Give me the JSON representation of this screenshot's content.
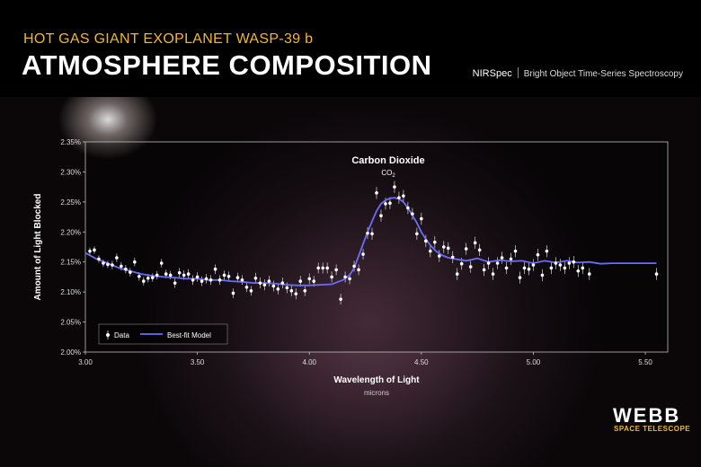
{
  "header": {
    "subtitle": "HOT GAS GIANT EXOPLANET WASP-39 b",
    "title": "ATMOSPHERE COMPOSITION",
    "instrument": "NIRSpec",
    "mode": "Bright Object Time-Series Spectroscopy"
  },
  "branding": {
    "name": "WEBB",
    "tagline": "SPACE TELESCOPE"
  },
  "colors": {
    "accent": "#f2b632",
    "model_line": "#6b6bff",
    "data_point": "#ffffff"
  },
  "chart_data": {
    "type": "scatter",
    "xlabel": "Wavelength of Light",
    "xunit": "microns",
    "ylabel": "Amount of Light Blocked",
    "xlim": [
      3.0,
      5.6
    ],
    "ylim": [
      2.0,
      2.35
    ],
    "x_ticks": [
      "3.00",
      "3.50",
      "4.00",
      "4.50",
      "5.00",
      "5.50"
    ],
    "y_ticks": [
      "2.00%",
      "2.05%",
      "2.10%",
      "2.15%",
      "2.20%",
      "2.25%",
      "2.30%",
      "2.35%"
    ],
    "legend": {
      "position": "bottom-left",
      "data_label": "Data",
      "model_label": "Best-fit Model"
    },
    "annotation": {
      "label": "Carbon Dioxide",
      "formula": "CO",
      "subscript": "2",
      "x": 4.35,
      "y": 2.29
    },
    "series": [
      {
        "name": "Data",
        "points": [
          [
            3.02,
            2.168,
            0.006
          ],
          [
            3.04,
            2.17,
            0.006
          ],
          [
            3.06,
            2.155,
            0.006
          ],
          [
            3.08,
            2.148,
            0.006
          ],
          [
            3.1,
            2.146,
            0.006
          ],
          [
            3.12,
            2.145,
            0.007
          ],
          [
            3.14,
            2.157,
            0.007
          ],
          [
            3.16,
            2.143,
            0.007
          ],
          [
            3.18,
            2.138,
            0.007
          ],
          [
            3.2,
            2.133,
            0.007
          ],
          [
            3.22,
            2.15,
            0.007
          ],
          [
            3.24,
            2.126,
            0.007
          ],
          [
            3.26,
            2.118,
            0.007
          ],
          [
            3.28,
            2.123,
            0.007
          ],
          [
            3.3,
            2.124,
            0.007
          ],
          [
            3.32,
            2.128,
            0.007
          ],
          [
            3.34,
            2.148,
            0.007
          ],
          [
            3.36,
            2.13,
            0.007
          ],
          [
            3.38,
            2.128,
            0.007
          ],
          [
            3.4,
            2.115,
            0.008
          ],
          [
            3.42,
            2.132,
            0.008
          ],
          [
            3.44,
            2.128,
            0.008
          ],
          [
            3.46,
            2.13,
            0.008
          ],
          [
            3.48,
            2.12,
            0.008
          ],
          [
            3.5,
            2.125,
            0.008
          ],
          [
            3.52,
            2.118,
            0.008
          ],
          [
            3.54,
            2.122,
            0.008
          ],
          [
            3.56,
            2.12,
            0.008
          ],
          [
            3.58,
            2.138,
            0.008
          ],
          [
            3.6,
            2.12,
            0.008
          ],
          [
            3.62,
            2.128,
            0.008
          ],
          [
            3.64,
            2.126,
            0.008
          ],
          [
            3.66,
            2.098,
            0.008
          ],
          [
            3.68,
            2.124,
            0.008
          ],
          [
            3.7,
            2.12,
            0.008
          ],
          [
            3.72,
            2.108,
            0.008
          ],
          [
            3.74,
            2.102,
            0.008
          ],
          [
            3.76,
            2.123,
            0.009
          ],
          [
            3.78,
            2.115,
            0.009
          ],
          [
            3.8,
            2.112,
            0.009
          ],
          [
            3.82,
            2.118,
            0.009
          ],
          [
            3.84,
            2.11,
            0.009
          ],
          [
            3.86,
            2.105,
            0.009
          ],
          [
            3.88,
            2.115,
            0.009
          ],
          [
            3.9,
            2.107,
            0.009
          ],
          [
            3.92,
            2.102,
            0.009
          ],
          [
            3.94,
            2.097,
            0.009
          ],
          [
            3.96,
            2.118,
            0.009
          ],
          [
            3.98,
            2.102,
            0.009
          ],
          [
            4.0,
            2.122,
            0.009
          ],
          [
            4.02,
            2.118,
            0.009
          ],
          [
            4.04,
            2.14,
            0.009
          ],
          [
            4.06,
            2.14,
            0.009
          ],
          [
            4.08,
            2.14,
            0.009
          ],
          [
            4.1,
            2.125,
            0.009
          ],
          [
            4.12,
            2.137,
            0.009
          ],
          [
            4.14,
            2.088,
            0.009
          ],
          [
            4.16,
            2.125,
            0.009
          ],
          [
            4.18,
            2.122,
            0.009
          ],
          [
            4.2,
            2.143,
            0.009
          ],
          [
            4.22,
            2.137,
            0.009
          ],
          [
            4.24,
            2.163,
            0.009
          ],
          [
            4.26,
            2.198,
            0.01
          ],
          [
            4.28,
            2.197,
            0.01
          ],
          [
            4.3,
            2.265,
            0.01
          ],
          [
            4.32,
            2.227,
            0.01
          ],
          [
            4.34,
            2.247,
            0.01
          ],
          [
            4.36,
            2.248,
            0.01
          ],
          [
            4.38,
            2.275,
            0.01
          ],
          [
            4.4,
            2.257,
            0.01
          ],
          [
            4.42,
            2.26,
            0.01
          ],
          [
            4.44,
            2.24,
            0.01
          ],
          [
            4.46,
            2.23,
            0.01
          ],
          [
            4.48,
            2.197,
            0.01
          ],
          [
            4.5,
            2.222,
            0.01
          ],
          [
            4.52,
            2.185,
            0.01
          ],
          [
            4.54,
            2.168,
            0.01
          ],
          [
            4.56,
            2.183,
            0.01
          ],
          [
            4.58,
            2.16,
            0.01
          ],
          [
            4.6,
            2.175,
            0.01
          ],
          [
            4.62,
            2.173,
            0.01
          ],
          [
            4.64,
            2.158,
            0.01
          ],
          [
            4.66,
            2.13,
            0.01
          ],
          [
            4.68,
            2.147,
            0.01
          ],
          [
            4.7,
            2.172,
            0.01
          ],
          [
            4.72,
            2.142,
            0.01
          ],
          [
            4.74,
            2.182,
            0.01
          ],
          [
            4.76,
            2.17,
            0.01
          ],
          [
            4.78,
            2.137,
            0.01
          ],
          [
            4.8,
            2.148,
            0.01
          ],
          [
            4.82,
            2.13,
            0.01
          ],
          [
            4.84,
            2.148,
            0.01
          ],
          [
            4.86,
            2.157,
            0.01
          ],
          [
            4.88,
            2.14,
            0.01
          ],
          [
            4.9,
            2.155,
            0.01
          ],
          [
            4.92,
            2.168,
            0.01
          ],
          [
            4.94,
            2.124,
            0.01
          ],
          [
            4.96,
            2.14,
            0.01
          ],
          [
            4.98,
            2.138,
            0.01
          ],
          [
            5.0,
            2.145,
            0.01
          ],
          [
            5.02,
            2.162,
            0.01
          ],
          [
            5.04,
            2.128,
            0.01
          ],
          [
            5.06,
            2.168,
            0.01
          ],
          [
            5.08,
            2.14,
            0.01
          ],
          [
            5.1,
            2.148,
            0.01
          ],
          [
            5.12,
            2.145,
            0.01
          ],
          [
            5.14,
            2.14,
            0.01
          ],
          [
            5.16,
            2.148,
            0.01
          ],
          [
            5.18,
            2.15,
            0.01
          ],
          [
            5.2,
            2.135,
            0.01
          ],
          [
            5.22,
            2.14,
            0.01
          ],
          [
            5.25,
            2.13,
            0.01
          ],
          [
            5.55,
            2.13,
            0.01
          ]
        ]
      },
      {
        "name": "Best-fit Model",
        "x": [
          3.0,
          3.05,
          3.1,
          3.15,
          3.2,
          3.25,
          3.3,
          3.35,
          3.4,
          3.45,
          3.5,
          3.55,
          3.6,
          3.65,
          3.7,
          3.75,
          3.8,
          3.85,
          3.9,
          3.95,
          4.0,
          4.05,
          4.1,
          4.15,
          4.18,
          4.2,
          4.22,
          4.24,
          4.26,
          4.28,
          4.3,
          4.32,
          4.34,
          4.36,
          4.38,
          4.4,
          4.42,
          4.44,
          4.46,
          4.48,
          4.5,
          4.52,
          4.54,
          4.56,
          4.58,
          4.6,
          4.62,
          4.65,
          4.7,
          4.75,
          4.8,
          4.85,
          4.9,
          4.95,
          5.0,
          5.05,
          5.1,
          5.15,
          5.2,
          5.25,
          5.3,
          5.35,
          5.4,
          5.45,
          5.5,
          5.55
        ],
        "y": [
          2.165,
          2.155,
          2.148,
          2.14,
          2.135,
          2.13,
          2.127,
          2.125,
          2.124,
          2.122,
          2.122,
          2.12,
          2.12,
          2.118,
          2.117,
          2.115,
          2.115,
          2.114,
          2.112,
          2.111,
          2.111,
          2.112,
          2.113,
          2.12,
          2.128,
          2.14,
          2.16,
          2.18,
          2.2,
          2.218,
          2.235,
          2.247,
          2.253,
          2.256,
          2.257,
          2.255,
          2.25,
          2.24,
          2.228,
          2.215,
          2.2,
          2.188,
          2.178,
          2.17,
          2.164,
          2.16,
          2.157,
          2.155,
          2.152,
          2.156,
          2.15,
          2.153,
          2.151,
          2.152,
          2.148,
          2.152,
          2.149,
          2.152,
          2.149,
          2.15,
          2.147,
          2.148,
          2.148,
          2.148,
          2.148,
          2.148
        ]
      }
    ]
  }
}
